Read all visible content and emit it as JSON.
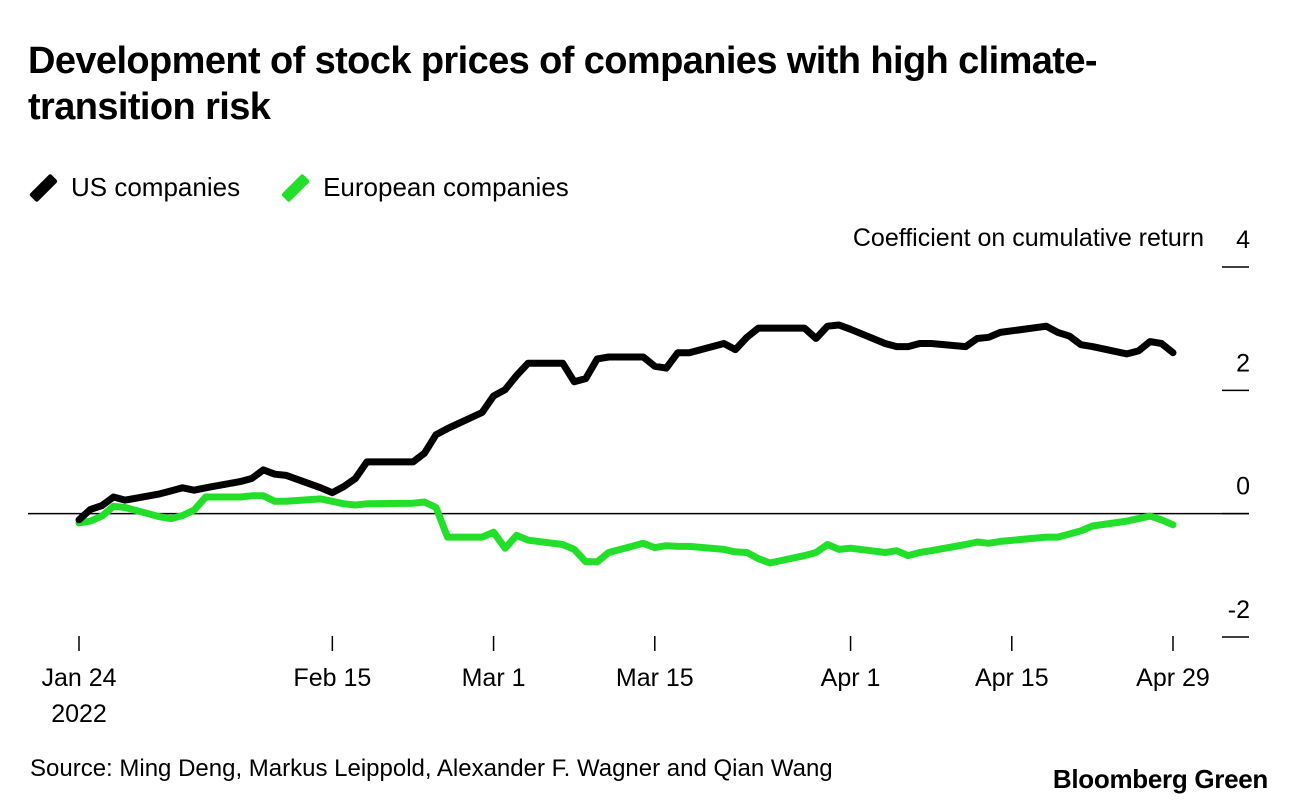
{
  "title": "Development of stock prices of companies with high climate-transition risk",
  "legend": [
    {
      "label": "US companies",
      "color": "#000000"
    },
    {
      "label": "European companies",
      "color": "#22e02a"
    }
  ],
  "source": "Source: Ming Deng, Markus Leippold, Alexander F. Wagner and Qian Wang",
  "brand": "Bloomberg Green",
  "chart_data": {
    "type": "line",
    "title": "Development of stock prices of companies with high climate-transition risk",
    "ylabel": "Coefficient on cumulative return",
    "xlabel": "",
    "ylim": [
      -2,
      4
    ],
    "yticks": [
      {
        "value": 4,
        "label": "4"
      },
      {
        "value": 2,
        "label": "2"
      },
      {
        "value": 0,
        "label": "0"
      },
      {
        "value": -2,
        "label": "-2"
      }
    ],
    "xlim": [
      "2022-01-24",
      "2022-04-29"
    ],
    "xticks": [
      {
        "date": "2022-01-24",
        "label": "Jan 24",
        "sublabel": "2022"
      },
      {
        "date": "2022-02-15",
        "label": "Feb 15"
      },
      {
        "date": "2022-03-01",
        "label": "Mar 1"
      },
      {
        "date": "2022-03-15",
        "label": "Mar 15"
      },
      {
        "date": "2022-04-01",
        "label": "Apr 1"
      },
      {
        "date": "2022-04-15",
        "label": "Apr 15"
      },
      {
        "date": "2022-04-29",
        "label": "Apr 29"
      }
    ],
    "zero_line": true,
    "legend_position": "top-left",
    "series": [
      {
        "name": "US companies",
        "color": "#000000",
        "points": [
          [
            "2022-01-24",
            -0.1
          ],
          [
            "2022-01-25",
            0.07
          ],
          [
            "2022-01-26",
            0.13
          ],
          [
            "2022-01-27",
            0.27
          ],
          [
            "2022-01-28",
            0.22
          ],
          [
            "2022-01-31",
            0.32
          ],
          [
            "2022-02-01",
            0.37
          ],
          [
            "2022-02-02",
            0.42
          ],
          [
            "2022-02-03",
            0.38
          ],
          [
            "2022-02-04",
            0.42
          ],
          [
            "2022-02-07",
            0.52
          ],
          [
            "2022-02-08",
            0.57
          ],
          [
            "2022-02-09",
            0.71
          ],
          [
            "2022-02-10",
            0.64
          ],
          [
            "2022-02-11",
            0.62
          ],
          [
            "2022-02-14",
            0.42
          ],
          [
            "2022-02-15",
            0.34
          ],
          [
            "2022-02-16",
            0.44
          ],
          [
            "2022-02-17",
            0.57
          ],
          [
            "2022-02-18",
            0.84
          ],
          [
            "2022-02-22",
            0.84
          ],
          [
            "2022-02-23",
            0.98
          ],
          [
            "2022-02-24",
            1.28
          ],
          [
            "2022-02-25",
            1.38
          ],
          [
            "2022-02-28",
            1.64
          ],
          [
            "2022-03-01",
            1.91
          ],
          [
            "2022-03-02",
            2.01
          ],
          [
            "2022-03-03",
            2.24
          ],
          [
            "2022-03-04",
            2.44
          ],
          [
            "2022-03-07",
            2.44
          ],
          [
            "2022-03-08",
            2.14
          ],
          [
            "2022-03-09",
            2.19
          ],
          [
            "2022-03-10",
            2.51
          ],
          [
            "2022-03-11",
            2.54
          ],
          [
            "2022-03-14",
            2.54
          ],
          [
            "2022-03-15",
            2.39
          ],
          [
            "2022-03-16",
            2.36
          ],
          [
            "2022-03-17",
            2.61
          ],
          [
            "2022-03-18",
            2.61
          ],
          [
            "2022-03-21",
            2.76
          ],
          [
            "2022-03-22",
            2.66
          ],
          [
            "2022-03-23",
            2.86
          ],
          [
            "2022-03-24",
            3.01
          ],
          [
            "2022-03-25",
            3.01
          ],
          [
            "2022-03-28",
            3.01
          ],
          [
            "2022-03-29",
            2.84
          ],
          [
            "2022-03-30",
            3.04
          ],
          [
            "2022-03-31",
            3.06
          ],
          [
            "2022-04-01",
            2.99
          ],
          [
            "2022-04-04",
            2.76
          ],
          [
            "2022-04-05",
            2.71
          ],
          [
            "2022-04-06",
            2.71
          ],
          [
            "2022-04-07",
            2.76
          ],
          [
            "2022-04-08",
            2.76
          ],
          [
            "2022-04-11",
            2.71
          ],
          [
            "2022-04-12",
            2.84
          ],
          [
            "2022-04-13",
            2.86
          ],
          [
            "2022-04-14",
            2.94
          ],
          [
            "2022-04-18",
            3.04
          ],
          [
            "2022-04-19",
            2.94
          ],
          [
            "2022-04-20",
            2.88
          ],
          [
            "2022-04-21",
            2.74
          ],
          [
            "2022-04-22",
            2.71
          ],
          [
            "2022-04-25",
            2.59
          ],
          [
            "2022-04-26",
            2.64
          ],
          [
            "2022-04-27",
            2.79
          ],
          [
            "2022-04-28",
            2.76
          ],
          [
            "2022-04-29",
            2.61
          ]
        ]
      },
      {
        "name": "European companies",
        "color": "#22e02a",
        "points": [
          [
            "2022-01-24",
            -0.15
          ],
          [
            "2022-01-25",
            -0.12
          ],
          [
            "2022-01-26",
            -0.04
          ],
          [
            "2022-01-27",
            0.12
          ],
          [
            "2022-01-28",
            0.1
          ],
          [
            "2022-01-31",
            -0.05
          ],
          [
            "2022-02-01",
            -0.08
          ],
          [
            "2022-02-02",
            -0.03
          ],
          [
            "2022-02-03",
            0.06
          ],
          [
            "2022-02-04",
            0.27
          ],
          [
            "2022-02-07",
            0.27
          ],
          [
            "2022-02-08",
            0.29
          ],
          [
            "2022-02-09",
            0.29
          ],
          [
            "2022-02-10",
            0.2
          ],
          [
            "2022-02-11",
            0.2
          ],
          [
            "2022-02-14",
            0.24
          ],
          [
            "2022-02-15",
            0.2
          ],
          [
            "2022-02-16",
            0.16
          ],
          [
            "2022-02-17",
            0.14
          ],
          [
            "2022-02-18",
            0.16
          ],
          [
            "2022-02-22",
            0.17
          ],
          [
            "2022-02-23",
            0.19
          ],
          [
            "2022-02-24",
            0.1
          ],
          [
            "2022-02-25",
            -0.38
          ],
          [
            "2022-02-28",
            -0.38
          ],
          [
            "2022-03-01",
            -0.3
          ],
          [
            "2022-03-02",
            -0.56
          ],
          [
            "2022-03-03",
            -0.35
          ],
          [
            "2022-03-04",
            -0.43
          ],
          [
            "2022-03-07",
            -0.5
          ],
          [
            "2022-03-08",
            -0.58
          ],
          [
            "2022-03-09",
            -0.78
          ],
          [
            "2022-03-10",
            -0.78
          ],
          [
            "2022-03-11",
            -0.63
          ],
          [
            "2022-03-14",
            -0.48
          ],
          [
            "2022-03-15",
            -0.55
          ],
          [
            "2022-03-16",
            -0.52
          ],
          [
            "2022-03-17",
            -0.53
          ],
          [
            "2022-03-18",
            -0.53
          ],
          [
            "2022-03-21",
            -0.58
          ],
          [
            "2022-03-22",
            -0.62
          ],
          [
            "2022-03-23",
            -0.63
          ],
          [
            "2022-03-24",
            -0.73
          ],
          [
            "2022-03-25",
            -0.8
          ],
          [
            "2022-03-28",
            -0.68
          ],
          [
            "2022-03-29",
            -0.63
          ],
          [
            "2022-03-30",
            -0.5
          ],
          [
            "2022-03-31",
            -0.58
          ],
          [
            "2022-04-01",
            -0.56
          ],
          [
            "2022-04-04",
            -0.63
          ],
          [
            "2022-04-05",
            -0.6
          ],
          [
            "2022-04-06",
            -0.68
          ],
          [
            "2022-04-07",
            -0.63
          ],
          [
            "2022-04-08",
            -0.6
          ],
          [
            "2022-04-11",
            -0.5
          ],
          [
            "2022-04-12",
            -0.46
          ],
          [
            "2022-04-13",
            -0.48
          ],
          [
            "2022-04-14",
            -0.45
          ],
          [
            "2022-04-18",
            -0.38
          ],
          [
            "2022-04-19",
            -0.38
          ],
          [
            "2022-04-20",
            -0.33
          ],
          [
            "2022-04-21",
            -0.28
          ],
          [
            "2022-04-22",
            -0.2
          ],
          [
            "2022-04-25",
            -0.12
          ],
          [
            "2022-04-26",
            -0.08
          ],
          [
            "2022-04-27",
            -0.04
          ],
          [
            "2022-04-28",
            -0.1
          ],
          [
            "2022-04-29",
            -0.18
          ]
        ]
      }
    ]
  }
}
